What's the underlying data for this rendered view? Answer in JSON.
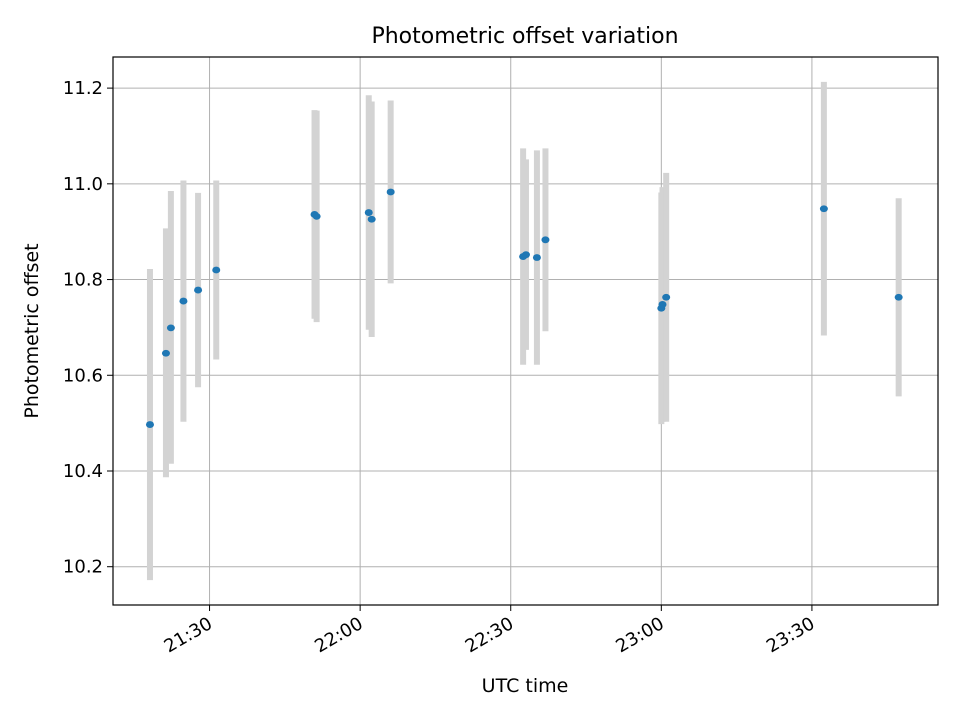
{
  "chart_data": {
    "type": "scatter",
    "title": "Photometric offset variation",
    "xlabel": "UTC time",
    "ylabel": "Photometric offset",
    "x_axis_kind": "time",
    "xlim": [
      "21:10:46",
      "23:55:07"
    ],
    "ylim": [
      10.12,
      11.265
    ],
    "xticks": [
      "21:30",
      "22:00",
      "22:30",
      "23:00",
      "23:30"
    ],
    "yticks": [
      10.2,
      10.4,
      10.6,
      10.8,
      11.0,
      11.2
    ],
    "ytick_labels": [
      "10.2",
      "10.4",
      "10.6",
      "10.8",
      "11.0",
      "11.2"
    ],
    "grid": true,
    "legend": "none",
    "errorbar_color": "#d3d3d3",
    "marker_color": "#1f77b4",
    "points": [
      {
        "time": "21:18:08",
        "y": 10.497,
        "low": 10.172,
        "high": 10.822
      },
      {
        "time": "21:21:19",
        "y": 10.646,
        "low": 10.387,
        "high": 10.907
      },
      {
        "time": "21:22:18",
        "y": 10.699,
        "low": 10.415,
        "high": 10.985
      },
      {
        "time": "21:24:48",
        "y": 10.755,
        "low": 10.503,
        "high": 11.007
      },
      {
        "time": "21:27:43",
        "y": 10.778,
        "low": 10.575,
        "high": 10.981
      },
      {
        "time": "21:31:20",
        "y": 10.82,
        "low": 10.633,
        "high": 11.007
      },
      {
        "time": "21:50:55",
        "y": 10.936,
        "low": 10.718,
        "high": 11.154
      },
      {
        "time": "21:51:20",
        "y": 10.932,
        "low": 10.711,
        "high": 11.153
      },
      {
        "time": "22:01:43",
        "y": 10.94,
        "low": 10.695,
        "high": 11.185
      },
      {
        "time": "22:02:18",
        "y": 10.926,
        "low": 10.68,
        "high": 11.172
      },
      {
        "time": "22:06:05",
        "y": 10.983,
        "low": 10.792,
        "high": 11.174
      },
      {
        "time": "22:32:28",
        "y": 10.848,
        "low": 10.622,
        "high": 11.074
      },
      {
        "time": "22:33:02",
        "y": 10.852,
        "low": 10.653,
        "high": 11.051
      },
      {
        "time": "22:35:13",
        "y": 10.846,
        "low": 10.622,
        "high": 11.07
      },
      {
        "time": "22:36:55",
        "y": 10.883,
        "low": 10.692,
        "high": 11.074
      },
      {
        "time": "23:00:00",
        "y": 10.74,
        "low": 10.498,
        "high": 10.982
      },
      {
        "time": "23:00:14",
        "y": 10.748,
        "low": 10.503,
        "high": 10.993
      },
      {
        "time": "23:00:58",
        "y": 10.763,
        "low": 10.503,
        "high": 11.023
      },
      {
        "time": "23:32:23",
        "y": 10.948,
        "low": 10.683,
        "high": 11.213
      },
      {
        "time": "23:47:17",
        "y": 10.763,
        "low": 10.556,
        "high": 10.97
      }
    ]
  }
}
